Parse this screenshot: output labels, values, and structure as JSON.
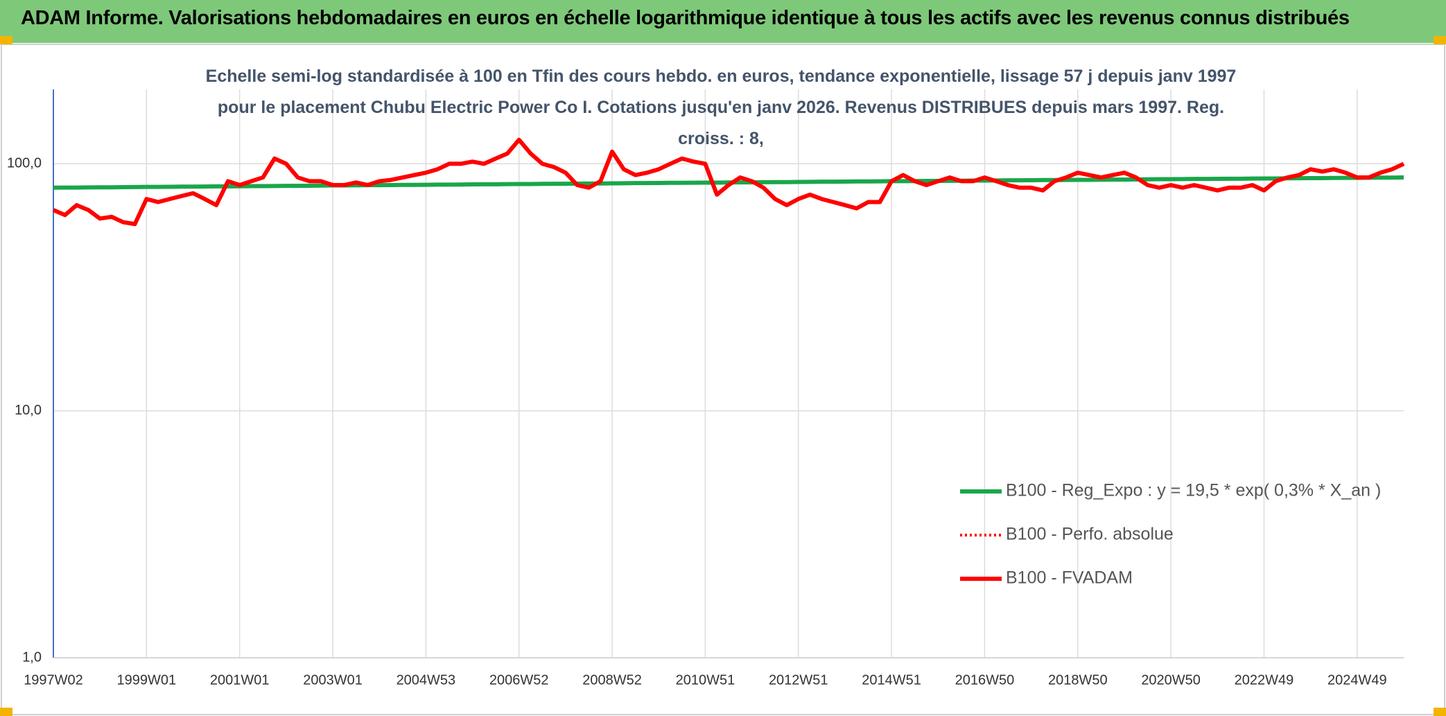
{
  "chart_data": {
    "type": "line",
    "title": "ADAM Informe. Valorisations hebdomadaires en euros en échelle logarithmique identique à tous les actifs avec les revenus connus distribués",
    "subtitle": "Echelle semi-log standardisée à 100 en Tfin des cours hebdo. en euros, tendance exponentielle, lissage 57 j depuis janv 1997 pour le placement Chubu Electric Power Co I. Cotations jusqu'en janv 2026. Revenus DISTRIBUES depuis mars 1997. Reg. croiss. : 8,",
    "log_scale": true,
    "grid": true,
    "legend": "lower right",
    "ylim": [
      1,
      200
    ],
    "yticks": [
      {
        "value": 1,
        "label": "1,0"
      },
      {
        "value": 10,
        "label": "10,0"
      },
      {
        "value": 100,
        "label": "100,0"
      }
    ],
    "categories": [
      "1997W02",
      null,
      null,
      null,
      null,
      null,
      null,
      null,
      "1999W01",
      null,
      null,
      null,
      null,
      null,
      null,
      null,
      "2001W01",
      null,
      null,
      null,
      null,
      null,
      null,
      null,
      "2003W01",
      null,
      null,
      null,
      null,
      null,
      null,
      null,
      "2004W53",
      null,
      null,
      null,
      null,
      null,
      null,
      null,
      "2006W52",
      null,
      null,
      null,
      null,
      null,
      null,
      null,
      "2008W52",
      null,
      null,
      null,
      null,
      null,
      null,
      null,
      "2010W51",
      null,
      null,
      null,
      null,
      null,
      null,
      null,
      "2012W51",
      null,
      null,
      null,
      null,
      null,
      null,
      null,
      "2014W51",
      null,
      null,
      null,
      null,
      null,
      null,
      null,
      "2016W50",
      null,
      null,
      null,
      null,
      null,
      null,
      null,
      "2018W50",
      null,
      null,
      null,
      null,
      null,
      null,
      null,
      "2020W50",
      null,
      null,
      null,
      null,
      null,
      null,
      null,
      "2022W49",
      null,
      null,
      null,
      null,
      null,
      null,
      null,
      "2024W49",
      null,
      null,
      null,
      null
    ],
    "series": [
      {
        "name": "B100 - Reg_Expo : y = 19,5 * exp( 0,3% *  X_an )",
        "color": "#1aa64a",
        "dash": false,
        "values": [
          80.0,
          80.1,
          80.1,
          80.2,
          80.3,
          80.3,
          80.4,
          80.5,
          80.6,
          80.6,
          80.7,
          80.8,
          80.8,
          80.9,
          81.0,
          81.0,
          81.1,
          81.2,
          81.2,
          81.3,
          81.4,
          81.4,
          81.5,
          81.6,
          81.7,
          81.7,
          81.8,
          81.9,
          81.9,
          82.0,
          82.1,
          82.1,
          82.2,
          82.3,
          82.3,
          82.4,
          82.5,
          82.6,
          82.6,
          82.7,
          82.8,
          82.8,
          82.9,
          83.0,
          83.0,
          83.1,
          83.2,
          83.2,
          83.3,
          83.4,
          83.5,
          83.5,
          83.6,
          83.7,
          83.7,
          83.8,
          83.9,
          83.9,
          84.0,
          84.1,
          84.1,
          84.2,
          84.3,
          84.3,
          84.4,
          84.5,
          84.6,
          84.6,
          84.7,
          84.8,
          84.8,
          84.9,
          85.0,
          85.0,
          85.1,
          85.2,
          85.2,
          85.3,
          85.4,
          85.5,
          85.5,
          85.6,
          85.7,
          85.7,
          85.8,
          85.9,
          85.9,
          86.0,
          86.1,
          86.1,
          86.2,
          86.3,
          86.3,
          86.4,
          86.5,
          86.6,
          86.6,
          86.7,
          86.8,
          86.8,
          86.9,
          87.0,
          87.0,
          87.1,
          87.2,
          87.2,
          87.3,
          87.4,
          87.5,
          87.5,
          87.6,
          87.7,
          87.7,
          87.8,
          87.9,
          87.9,
          88.0
        ]
      },
      {
        "name": "B100 - Perfo. absolue",
        "color": "#ff0000",
        "dash": true,
        "values": [
          65,
          62,
          68,
          65,
          60,
          61,
          58,
          57,
          72,
          70,
          72,
          74,
          76,
          72,
          68,
          85,
          82,
          85,
          88,
          105,
          100,
          88,
          85,
          85,
          82,
          82,
          84,
          82,
          85,
          86,
          88,
          90,
          92,
          95,
          100,
          100,
          102,
          100,
          105,
          110,
          125,
          110,
          100,
          97,
          92,
          82,
          80,
          85,
          112,
          95,
          90,
          92,
          95,
          100,
          105,
          102,
          100,
          75,
          82,
          88,
          85,
          80,
          72,
          68,
          72,
          75,
          72,
          70,
          68,
          66,
          70,
          70,
          85,
          90,
          85,
          82,
          85,
          88,
          85,
          85,
          88,
          85,
          82,
          80,
          80,
          78,
          85,
          88,
          92,
          90,
          88,
          90,
          92,
          88,
          82,
          80,
          82,
          80,
          82,
          80,
          78,
          80,
          80,
          82,
          78,
          85,
          88,
          90,
          95,
          93,
          95,
          92,
          88,
          88,
          92,
          95,
          100
        ]
      },
      {
        "name": "B100 - FVADAM",
        "color": "#ff0000",
        "dash": false,
        "values": [
          65,
          62,
          68,
          65,
          60,
          61,
          58,
          57,
          72,
          70,
          72,
          74,
          76,
          72,
          68,
          85,
          82,
          85,
          88,
          105,
          100,
          88,
          85,
          85,
          82,
          82,
          84,
          82,
          85,
          86,
          88,
          90,
          92,
          95,
          100,
          100,
          102,
          100,
          105,
          110,
          125,
          110,
          100,
          97,
          92,
          82,
          80,
          85,
          112,
          95,
          90,
          92,
          95,
          100,
          105,
          102,
          100,
          75,
          82,
          88,
          85,
          80,
          72,
          68,
          72,
          75,
          72,
          70,
          68,
          66,
          70,
          70,
          85,
          90,
          85,
          82,
          85,
          88,
          85,
          85,
          88,
          85,
          82,
          80,
          80,
          78,
          85,
          88,
          92,
          90,
          88,
          90,
          92,
          88,
          82,
          80,
          82,
          80,
          82,
          80,
          78,
          80,
          80,
          82,
          78,
          85,
          88,
          90,
          95,
          93,
          95,
          92,
          88,
          88,
          92,
          95,
          100
        ]
      }
    ]
  }
}
